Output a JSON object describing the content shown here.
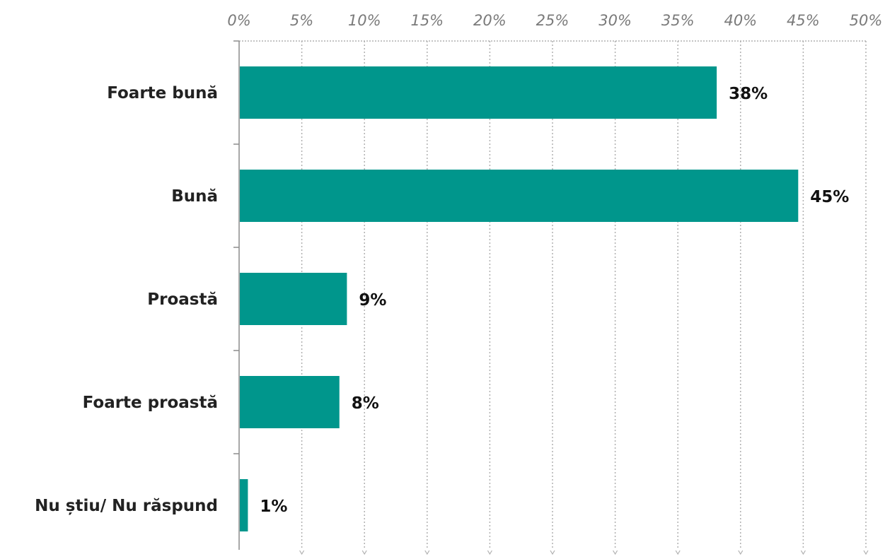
{
  "chart_data": {
    "type": "bar",
    "orientation": "horizontal",
    "categories": [
      "Foarte bună",
      "Bună",
      "Proastă",
      "Foarte proastă",
      "Nu știu/ Nu răspund"
    ],
    "values": [
      38.1,
      44.6,
      8.6,
      8.0,
      0.7
    ],
    "data_labels": [
      "38%",
      "45%",
      "9%",
      "8%",
      "1%"
    ],
    "xlim": [
      0,
      50
    ],
    "xticks": [
      0,
      5,
      10,
      15,
      20,
      25,
      30,
      35,
      40,
      45,
      50
    ],
    "tick_labels": [
      "0%",
      "5%",
      "10%",
      "15%",
      "20%",
      "25%",
      "30%",
      "35%",
      "40%",
      "45%",
      "50%"
    ],
    "axis_position": "top",
    "grid": true,
    "grid_style": "dotted",
    "title": "",
    "xlabel": "",
    "ylabel": ""
  },
  "colors": {
    "bar": "#00968c",
    "grid": "#b0b0b0",
    "axis": "#8c8c8c"
  }
}
